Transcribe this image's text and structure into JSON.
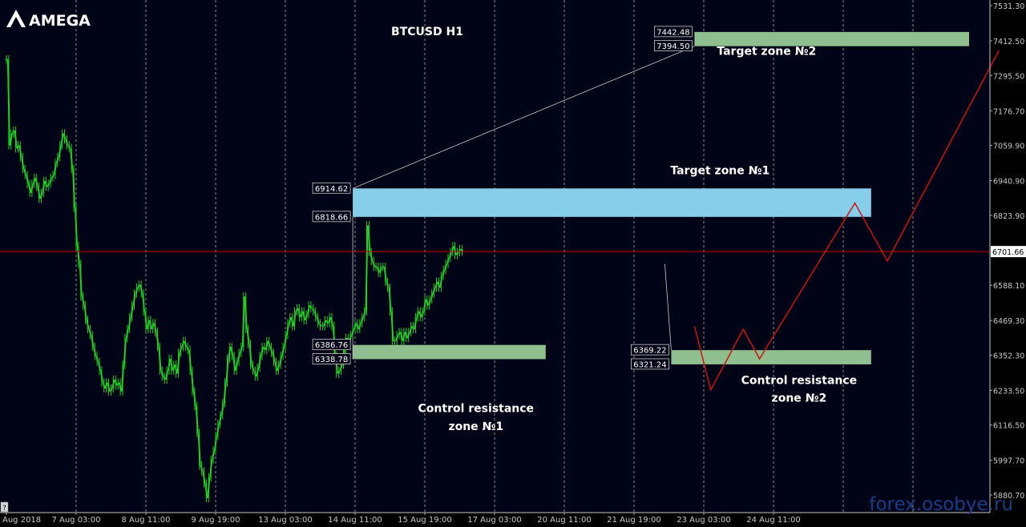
{
  "logo": {
    "text": "AMEGA"
  },
  "chart_data": {
    "type": "candlestick",
    "title": "BTCUSD H1",
    "symbol": "BTCUSD",
    "timeframe": "H1",
    "grid": true,
    "colors": {
      "background": "#010417",
      "candle": "#1fd21f",
      "grid": "#8a8a8a",
      "current_price_line": "#c80000",
      "projection": "#d01010",
      "target_zone_1": "#87ceeb",
      "zones_green": "#8fbf8f",
      "connector": "#c8c8c8"
    },
    "y_axis": {
      "ylim": [
        5830,
        7560
      ],
      "tick_labels": [
        "7531.30",
        "7412.50",
        "7295.50",
        "7176.70",
        "7059.90",
        "6940.90",
        "6823.90",
        "6701.66",
        "6588.10",
        "6469.30",
        "6352.30",
        "6233.50",
        "6116.50",
        "5997.70",
        "5880.70"
      ],
      "tick_values": [
        7531.3,
        7412.5,
        7295.5,
        7176.7,
        7059.9,
        6940.9,
        6823.9,
        6701.66,
        6588.1,
        6469.3,
        6352.3,
        6233.5,
        6116.5,
        5997.7,
        5880.7
      ]
    },
    "x_axis": {
      "tick_labels": [
        "Aug 2018",
        "7 Aug 03:00",
        "8 Aug 11:00",
        "9 Aug 19:00",
        "13 Aug 03:00",
        "14 Aug 11:00",
        "15 Aug 19:00",
        "17 Aug 03:00",
        "20 Aug 11:00",
        "21 Aug 19:00",
        "23 Aug 03:00",
        "24 Aug 11:00"
      ],
      "tick_index": [
        0,
        30,
        60,
        90,
        120,
        150,
        180,
        210,
        240,
        270,
        300,
        330
      ]
    },
    "current_price": 6701.66,
    "zones": [
      {
        "name": "Target zone №2",
        "high": 7442.48,
        "low": 7394.5,
        "high_label": "7442.48",
        "low_label": "7394.50",
        "start_index": 296,
        "end_index": 430,
        "color": "#8fbf8f"
      },
      {
        "name": "Target zone №1",
        "high": 6914.62,
        "low": 6818.66,
        "high_label": "6914.62",
        "low_label": "6818.66",
        "start_index": 149,
        "end_index": 372,
        "color": "#87ceeb"
      },
      {
        "name": "Control resistance zone №1",
        "high": 6386.76,
        "low": 6338.78,
        "high_label": "6386.76",
        "low_label": "6338.78",
        "start_index": 149,
        "end_index": 232,
        "color": "#8fbf8f"
      },
      {
        "name": "Control resistance zone №2",
        "high": 6369.22,
        "low": 6321.24,
        "high_label": "6369.22",
        "low_label": "6321.24",
        "start_index": 286,
        "end_index": 372,
        "color": "#8fbf8f"
      }
    ],
    "annotations": [
      {
        "text": "Target zone №2",
        "index": 327,
        "value": 7365
      },
      {
        "text": "Target zone №1",
        "index": 307,
        "value": 6962
      },
      {
        "text": "Control resistance",
        "index": 202,
        "value": 6160
      },
      {
        "text": "zone №1",
        "index": 202,
        "value": 6100
      },
      {
        "text": "Control resistance",
        "index": 341,
        "value": 6255
      },
      {
        "text": "zone №2",
        "index": 341,
        "value": 6195
      }
    ],
    "projection_path": [
      {
        "index": 296,
        "value": 6450
      },
      {
        "index": 303,
        "value": 6235
      },
      {
        "index": 317,
        "value": 6440
      },
      {
        "index": 324,
        "value": 6340
      },
      {
        "index": 365,
        "value": 6865
      },
      {
        "index": 379,
        "value": 6670
      },
      {
        "index": 427,
        "value": 7380
      }
    ],
    "series": [
      {
        "name": "BTCUSD",
        "type": "close",
        "x_index_start": 0,
        "values": [
          7350,
          7060,
          7100,
          7110,
          7050,
          7060,
          7020,
          6980,
          6960,
          6930,
          6900,
          6930,
          6950,
          6920,
          6880,
          6900,
          6940,
          6920,
          6930,
          6950,
          6960,
          7000,
          7020,
          7060,
          7100,
          7080,
          7060,
          7050,
          6980,
          6850,
          6720,
          6660,
          6550,
          6520,
          6470,
          6440,
          6420,
          6380,
          6350,
          6330,
          6300,
          6260,
          6240,
          6260,
          6230,
          6240,
          6270,
          6250,
          6260,
          6230,
          6320,
          6410,
          6440,
          6480,
          6520,
          6560,
          6580,
          6590,
          6560,
          6500,
          6440,
          6470,
          6440,
          6460,
          6430,
          6380,
          6300,
          6280,
          6270,
          6300,
          6340,
          6300,
          6320,
          6290,
          6360,
          6380,
          6400,
          6380,
          6370,
          6300,
          6230,
          6180,
          6090,
          5980,
          5960,
          5920,
          5870,
          5940,
          6000,
          6030,
          6080,
          6120,
          6150,
          6190,
          6260,
          6340,
          6380,
          6350,
          6300,
          6330,
          6360,
          6380,
          6550,
          6440,
          6390,
          6320,
          6300,
          6280,
          6310,
          6350,
          6380,
          6370,
          6400,
          6380,
          6360,
          6330,
          6300,
          6320,
          6350,
          6380,
          6420,
          6460,
          6480,
          6450,
          6500,
          6510,
          6480,
          6500,
          6470,
          6490,
          6520,
          6510,
          6500,
          6480,
          6460,
          6450,
          6450,
          6470,
          6460,
          6480,
          6450,
          6350,
          6290,
          6300,
          6320,
          6370,
          6410,
          6400,
          6420,
          6440,
          6460,
          6440,
          6460,
          6480,
          6500,
          6790,
          6700,
          6670,
          6650,
          6650,
          6630,
          6650,
          6650,
          6600,
          6580,
          6500,
          6400,
          6400,
          6420,
          6430,
          6400,
          6430,
          6410,
          6430,
          6450,
          6440,
          6480,
          6500,
          6480,
          6500,
          6540,
          6520,
          6540,
          6560,
          6580,
          6600,
          6580,
          6620,
          6640,
          6660,
          6680,
          6700,
          6720,
          6690,
          6700,
          6710,
          6701.66
        ]
      }
    ]
  },
  "watermark": "forex.osobye.ru",
  "corner_mark": "?"
}
